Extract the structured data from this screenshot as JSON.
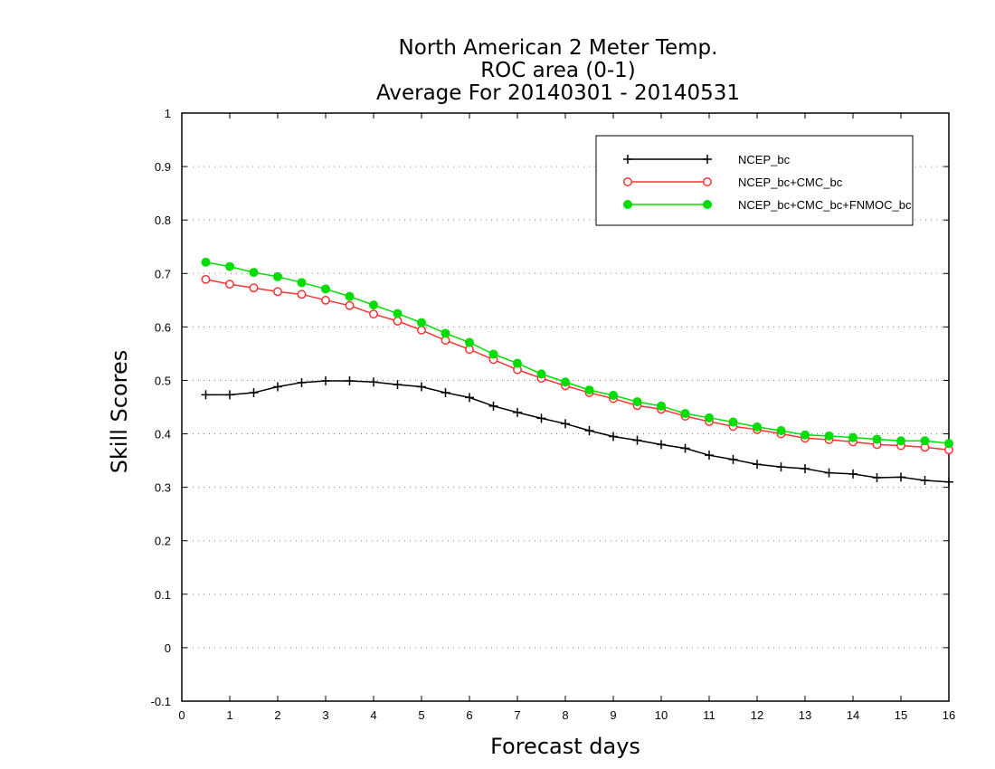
{
  "chart_data": {
    "type": "line",
    "title": [
      "North American 2 Meter Temp.",
      "ROC area (0-1)",
      "Average For 20140301 - 20140531"
    ],
    "xlabel": "Forecast days",
    "ylabel": "Skill Scores",
    "xlim": [
      0,
      16
    ],
    "ylim": [
      -0.1,
      1
    ],
    "xticks": [
      0,
      1,
      2,
      3,
      4,
      5,
      6,
      7,
      8,
      9,
      10,
      11,
      12,
      13,
      14,
      15,
      16
    ],
    "yticks": [
      -0.1,
      0,
      0.1,
      0.2,
      0.3,
      0.4,
      0.5,
      0.6,
      0.7,
      0.8,
      0.9,
      1
    ],
    "ytick_labels": [
      "-0.1",
      "0",
      "0.1",
      "0.2",
      "0.3",
      "0.4",
      "0.5",
      "0.6",
      "0.7",
      "0.8",
      "0.9",
      "1"
    ],
    "grid": "horizontal dotted",
    "legend_position": "top-right",
    "x": [
      0.5,
      1,
      1.5,
      2,
      2.5,
      3,
      3.5,
      4,
      4.5,
      5,
      5.5,
      6,
      6.5,
      7,
      7.5,
      8,
      8.5,
      9,
      9.5,
      10,
      10.5,
      11,
      11.5,
      12,
      12.5,
      13,
      13.5,
      14,
      14.5,
      15,
      15.5,
      16
    ],
    "series": [
      {
        "name": "NCEP_bc",
        "color": "#000000",
        "marker": "plus",
        "values": [
          0.473,
          0.473,
          0.477,
          0.488,
          0.496,
          0.499,
          0.499,
          0.497,
          0.492,
          0.488,
          0.477,
          0.468,
          0.452,
          0.44,
          0.429,
          0.419,
          0.406,
          0.395,
          0.388,
          0.38,
          0.373,
          0.36,
          0.352,
          0.343,
          0.338,
          0.335,
          0.327,
          0.325,
          0.318,
          0.319,
          0.313,
          0.31
        ]
      },
      {
        "name": "NCEP_bc+CMC_bc",
        "color": "#ff3333",
        "marker": "open-circle",
        "values": [
          0.689,
          0.68,
          0.673,
          0.666,
          0.661,
          0.65,
          0.64,
          0.624,
          0.611,
          0.594,
          0.575,
          0.558,
          0.539,
          0.52,
          0.504,
          0.49,
          0.477,
          0.466,
          0.453,
          0.446,
          0.433,
          0.423,
          0.414,
          0.408,
          0.4,
          0.392,
          0.389,
          0.385,
          0.38,
          0.378,
          0.375,
          0.37
        ]
      },
      {
        "name": "NCEP_bc+CMC_bc+FNMOC_bc",
        "color": "#00dd00",
        "marker": "filled-circle",
        "values": [
          0.721,
          0.713,
          0.702,
          0.694,
          0.683,
          0.671,
          0.657,
          0.641,
          0.625,
          0.608,
          0.588,
          0.571,
          0.549,
          0.532,
          0.512,
          0.497,
          0.482,
          0.472,
          0.46,
          0.452,
          0.438,
          0.43,
          0.422,
          0.413,
          0.406,
          0.398,
          0.396,
          0.393,
          0.39,
          0.387,
          0.387,
          0.382
        ]
      }
    ]
  }
}
